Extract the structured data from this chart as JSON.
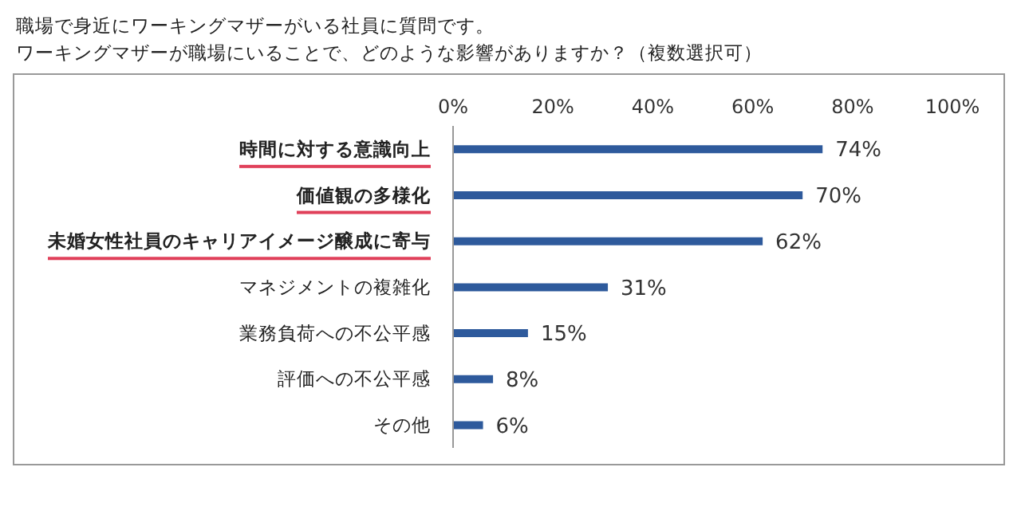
{
  "chart_data": {
    "type": "bar",
    "orientation": "horizontal",
    "title": "職場で身近にワーキングマザーがいる社員に質問です。",
    "subtitle": "ワーキングマザーが職場にいることで、どのような影響がありますか？（複数選択可）",
    "categories": [
      "時間に対する意識向上",
      "価値観の多様化",
      "未婚女性社員のキャリアイメージ醸成に寄与",
      "マネジメントの複雑化",
      "業務負荷への不公平感",
      "評価への不公平感",
      "その他"
    ],
    "values": [
      74,
      70,
      62,
      31,
      15,
      8,
      6
    ],
    "value_labels": [
      "74%",
      "70%",
      "62%",
      "31%",
      "15%",
      "8%",
      "6%"
    ],
    "color": "#2e5a9c",
    "xlim": [
      0,
      100
    ],
    "xticks": [
      {
        "value": 0,
        "label": "0%"
      },
      {
        "value": 20,
        "label": "20%"
      },
      {
        "value": 40,
        "label": "40%"
      },
      {
        "value": 60,
        "label": "60%"
      },
      {
        "value": 80,
        "label": "80%"
      },
      {
        "value": 100,
        "label": "100%"
      }
    ],
    "grid": false
  }
}
